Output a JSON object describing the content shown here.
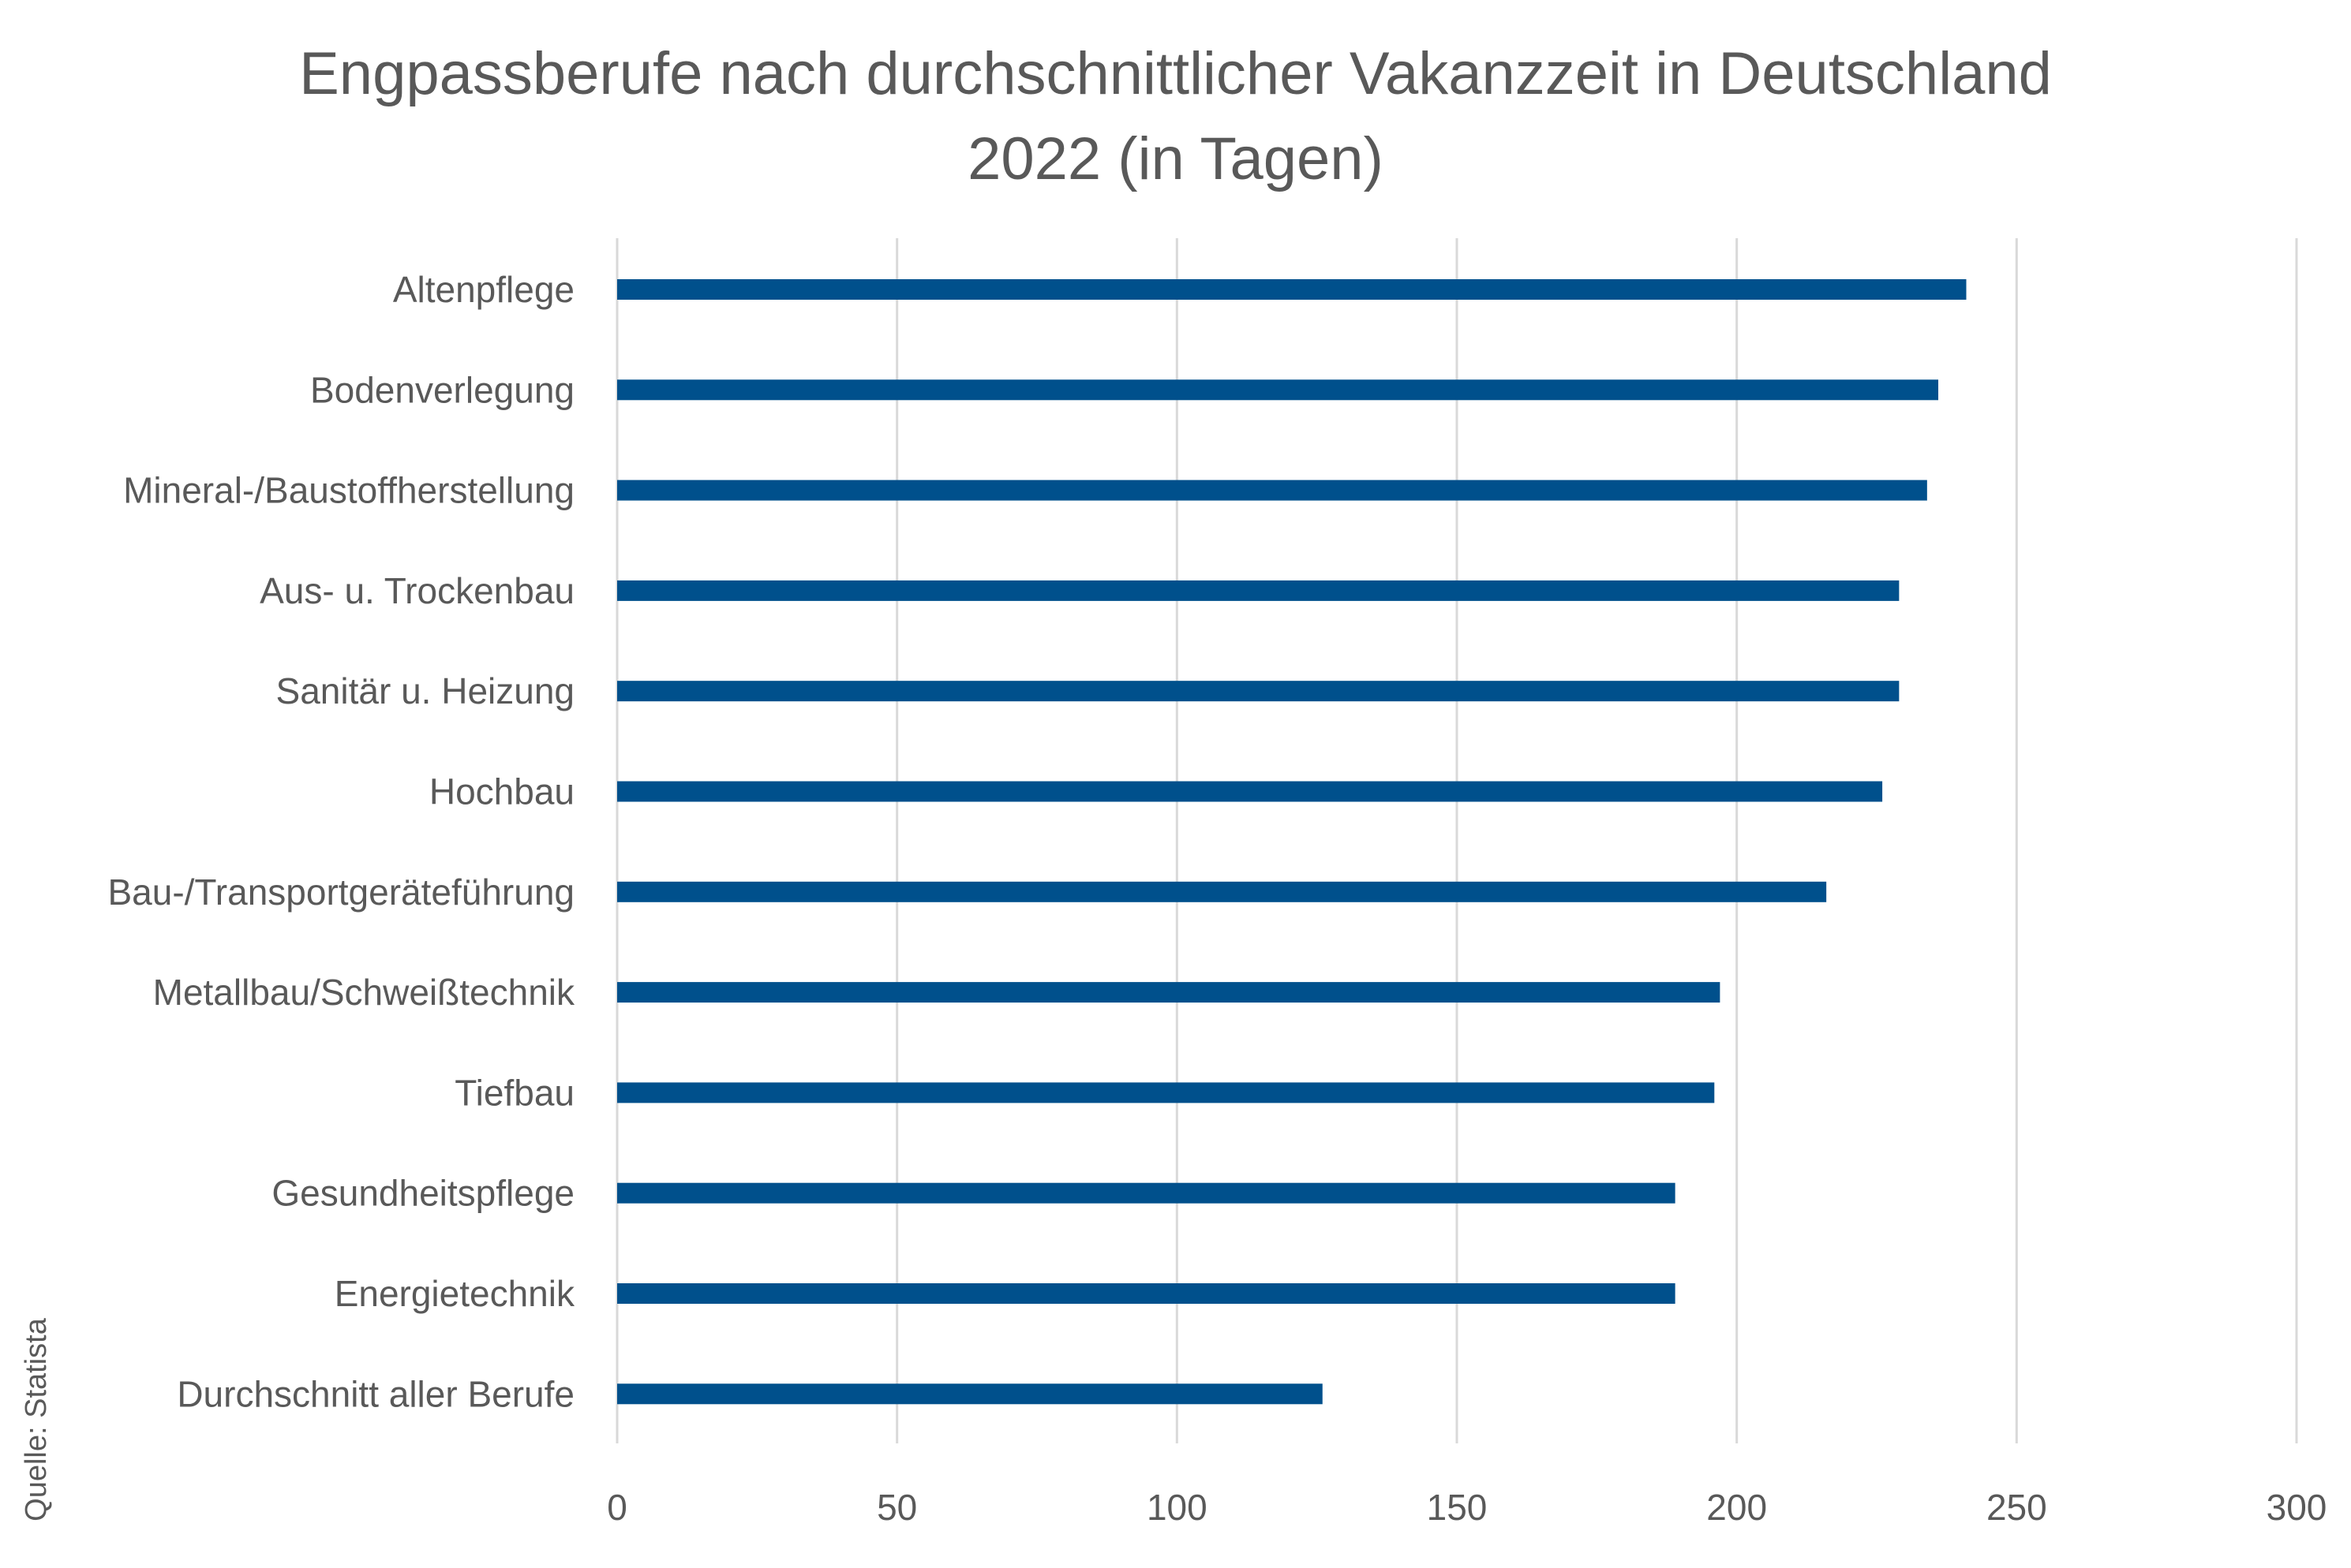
{
  "chart_data": {
    "type": "bar",
    "orientation": "horizontal",
    "title_line1": "Engpassberufe nach durchschnittlicher Vakanzzeit in Deutschland",
    "title_line2": "2022 (in Tagen)",
    "categories": [
      "Altenpflege",
      "Bodenverlegung",
      "Mineral-/Baustoffherstellung",
      "Aus- u. Trockenbau",
      "Sanitär u. Heizung",
      "Hochbau",
      "Bau-/Transportgeräteführung",
      "Metallbau/Schweißtechnik",
      "Tiefbau",
      "Gesundheitspflege",
      "Energietechnik",
      "Durchschnitt aller Berufe"
    ],
    "values": [
      241,
      236,
      234,
      229,
      229,
      226,
      216,
      197,
      196,
      189,
      189,
      126
    ],
    "xlim": [
      0,
      300
    ],
    "xticks": [
      "0",
      "50",
      "100",
      "150",
      "200",
      "250",
      "300"
    ],
    "grid": true,
    "bar_color": "#00508C",
    "grid_color": "#D9D9D9",
    "source": "Quelle: Statista"
  }
}
